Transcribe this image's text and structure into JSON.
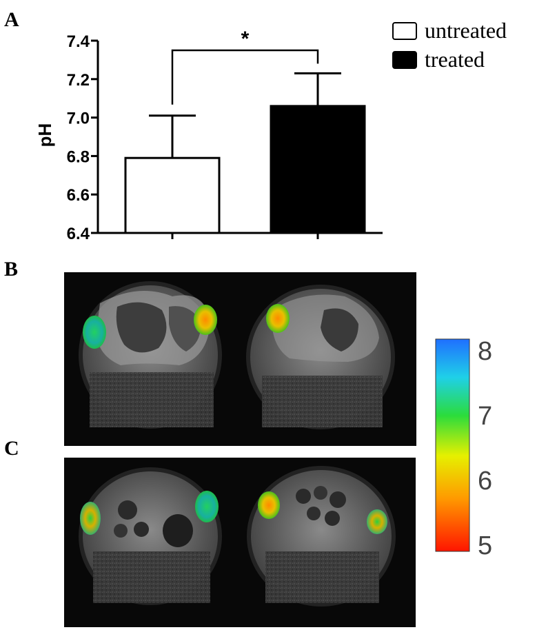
{
  "panels": {
    "a": "A",
    "b": "B",
    "c": "C"
  },
  "chart_data": {
    "type": "bar",
    "categories": [
      "untreated",
      "treated"
    ],
    "values": [
      6.79,
      7.06
    ],
    "errors": [
      0.22,
      0.17
    ],
    "bar_colors": [
      "#ffffff",
      "#000000"
    ],
    "ylabel": "pH",
    "xlabel": "",
    "ylim": [
      6.4,
      7.4
    ],
    "yticks": [
      6.4,
      6.6,
      6.8,
      7.0,
      7.2,
      7.4
    ],
    "ytick_labels": [
      "6.4",
      "6.6",
      "6.8",
      "7.0",
      "7.2",
      "7.4"
    ],
    "legend": [
      "untreated",
      "treated"
    ],
    "legend_position": "top-right",
    "significance": "*"
  },
  "colorbar": {
    "min": 5,
    "max": 8,
    "labels": [
      "8",
      "7",
      "6",
      "5"
    ],
    "colors": [
      "#1f7fff",
      "#20d8d8",
      "#22dd44",
      "#e8f000",
      "#ff9a00",
      "#ff1a00"
    ]
  }
}
